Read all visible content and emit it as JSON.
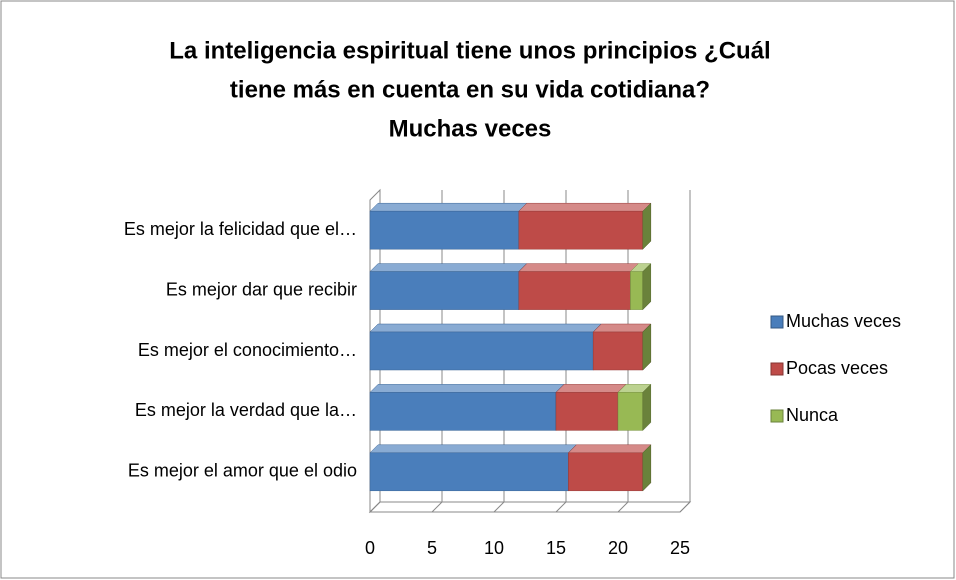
{
  "chart_data": {
    "type": "bar3d_stacked_horizontal",
    "title": [
      "La inteligencia espiritual tiene unos principios ¿Cuál",
      "tiene más en cuenta en su vida cotidiana?",
      "Muchas veces"
    ],
    "categories": [
      "Es mejor la felicidad que el…",
      "Es mejor dar que recibir",
      "Es mejor el conocimiento…",
      "Es mejor la verdad que la…",
      "Es mejor el amor que el odio"
    ],
    "series": [
      {
        "name": "Muchas veces",
        "color": "#4a7ebb",
        "values": [
          12,
          12,
          18,
          15,
          16
        ]
      },
      {
        "name": "Pocas veces",
        "color": "#be4b48",
        "values": [
          10,
          9,
          4,
          5,
          6
        ]
      },
      {
        "name": "Nunca",
        "color": "#98b954",
        "values": [
          0,
          1,
          0,
          2,
          0
        ]
      }
    ],
    "xlim": [
      0,
      25
    ],
    "xticks": [
      0,
      5,
      10,
      15,
      20,
      25
    ],
    "grid": true,
    "legend": "right"
  }
}
